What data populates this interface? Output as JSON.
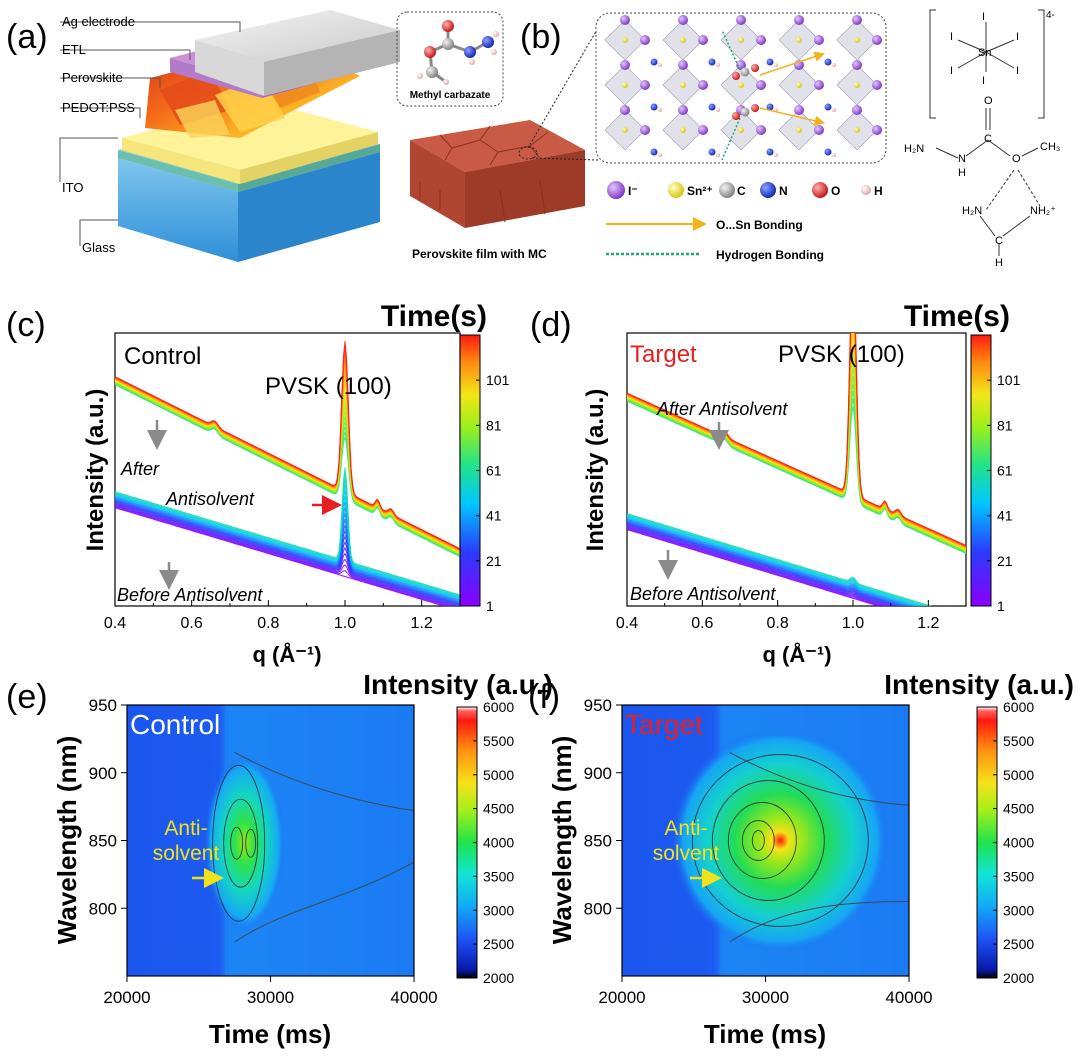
{
  "panel_a": {
    "letter": "(a)",
    "layers": [
      "Ag electrode",
      "ETL",
      "Perovskite",
      "PEDOT:PSS",
      "ITO",
      "Glass"
    ]
  },
  "panel_b": {
    "letter": "(b)",
    "molecule_label": "Methyl carbazate",
    "film_label": "Perovskite film with MC",
    "legend_atoms": [
      "I⁻",
      "Sn²⁺",
      "C",
      "N",
      "O",
      "H"
    ],
    "legend_bonds": [
      "O...Sn Bonding",
      "Hydrogen Bonding"
    ],
    "complex_charge": "4-",
    "complex_atoms": {
      "sn": "Sn",
      "iodine": "I",
      "oxygen1": "O",
      "carbon": "C",
      "oxygen2": "O",
      "h2n_left": "H₂N",
      "nh": "N",
      "nh_h": "H",
      "ch3": "CH₃",
      "fa_left": "H₂N",
      "fa_right": "NH₂⁺",
      "fa_c": "C",
      "fa_h_top": "H",
      "fa_h_bottom": "H"
    }
  },
  "chart_data": [
    {
      "id": "c",
      "type": "line",
      "letter": "(c)",
      "title": "",
      "sample_label": "Control",
      "xlabel": "q (Å⁻¹)",
      "ylabel": "Intensity (a.u.)",
      "xlim": [
        0.4,
        1.3
      ],
      "xticks": [
        0.4,
        0.6,
        0.8,
        1.0,
        1.2
      ],
      "xtick_labels": [
        "0.4",
        "0.6",
        "0.8",
        "1.0",
        "1.2"
      ],
      "peak_label": "PVSK (100)",
      "annotations": [
        "After",
        "Antisolvent",
        "Before Antisolvent"
      ],
      "colorbar": {
        "title": "Time(s)",
        "range": [
          1,
          121
        ],
        "ticks": [
          1,
          21,
          41,
          61,
          81,
          101
        ]
      },
      "curve_stack": {
        "count": 40
      },
      "peak": {
        "q": 1.0,
        "height_early": 0.35,
        "height_late": 0.55
      }
    },
    {
      "id": "d",
      "type": "line",
      "letter": "(d)",
      "title": "",
      "sample_label": "Target",
      "xlabel": "q (Å⁻¹)",
      "ylabel": "Intensity (a.u.)",
      "xlim": [
        0.4,
        1.3
      ],
      "xticks": [
        0.4,
        0.6,
        0.8,
        1.0,
        1.2
      ],
      "xtick_labels": [
        "0.4",
        "0.6",
        "0.8",
        "1.0",
        "1.2"
      ],
      "peak_label": "PVSK (100)",
      "annotations": [
        "After Antisolvent",
        "Before Antisolvent"
      ],
      "colorbar": {
        "title": "Time(s)",
        "range": [
          1,
          121
        ],
        "ticks": [
          1,
          21,
          41,
          61,
          81,
          101
        ]
      },
      "curve_stack": {
        "count": 40
      },
      "peak": {
        "q": 1.0,
        "height_late": 1.0
      }
    },
    {
      "id": "e",
      "type": "heatmap",
      "letter": "(e)",
      "title": "",
      "sample_label": "Control",
      "xlabel": "Time (ms)",
      "ylabel": "Wavelength (nm)",
      "xlim": [
        20000,
        40000
      ],
      "ylim": [
        750,
        950
      ],
      "xticks": [
        20000,
        30000,
        40000
      ],
      "xtick_labels": [
        "20000",
        "30000",
        "40000"
      ],
      "yticks": [
        800,
        850,
        900,
        950
      ],
      "ytick_labels": [
        "800",
        "850",
        "900",
        "950"
      ],
      "annotation": [
        "Anti-",
        "solvent"
      ],
      "colorbar": {
        "title": "Intensity (a.u.)",
        "range": [
          2000,
          6000
        ],
        "ticks": [
          2000,
          2500,
          3000,
          3500,
          4000,
          4500,
          5000,
          5500,
          6000
        ],
        "tick_labels": [
          "2000",
          "2500",
          "3000",
          "3500",
          "4000",
          "4500",
          "5000",
          "5500",
          "6000"
        ]
      },
      "hotspot": {
        "time_ms": 28200,
        "wavelength_nm": 848,
        "peak_intensity": 4300
      }
    },
    {
      "id": "f",
      "type": "heatmap",
      "letter": "(f)",
      "title": "",
      "sample_label": "Target",
      "xlabel": "Time (ms)",
      "ylabel": "Wavelength (nm)",
      "xlim": [
        20000,
        40000
      ],
      "ylim": [
        750,
        950
      ],
      "xticks": [
        20000,
        30000,
        40000
      ],
      "xtick_labels": [
        "20000",
        "30000",
        "40000"
      ],
      "yticks": [
        800,
        850,
        900,
        950
      ],
      "ytick_labels": [
        "800",
        "850",
        "900",
        "950"
      ],
      "annotation": [
        "Anti-",
        "solvent"
      ],
      "colorbar": {
        "title": "Intensity (a.u.)",
        "range": [
          2000,
          6000
        ],
        "ticks": [
          2000,
          2500,
          3000,
          3500,
          4000,
          4500,
          5000,
          5500,
          6000
        ],
        "tick_labels": [
          "2000",
          "2500",
          "3000",
          "3500",
          "4000",
          "4500",
          "5000",
          "5500",
          "6000"
        ]
      },
      "hotspot": {
        "time_ms": 29500,
        "wavelength_nm": 850,
        "peak_intensity": 6000
      }
    }
  ],
  "colors": {
    "accent_red": "#e81f1f",
    "annotation_yellow": "#f2e21c",
    "arrow_gray": "#8a8a8a",
    "orange_bond": "#f3b21a",
    "green_bond": "#1fa870",
    "heatmap_bg": "#1c5cf0",
    "atom_I": "#8a43c8",
    "atom_Sn": "#ece21b",
    "atom_C": "#9a9a9a",
    "atom_N": "#1530c8",
    "atom_O": "#d81c1c",
    "atom_H": "#e8b3b3"
  }
}
